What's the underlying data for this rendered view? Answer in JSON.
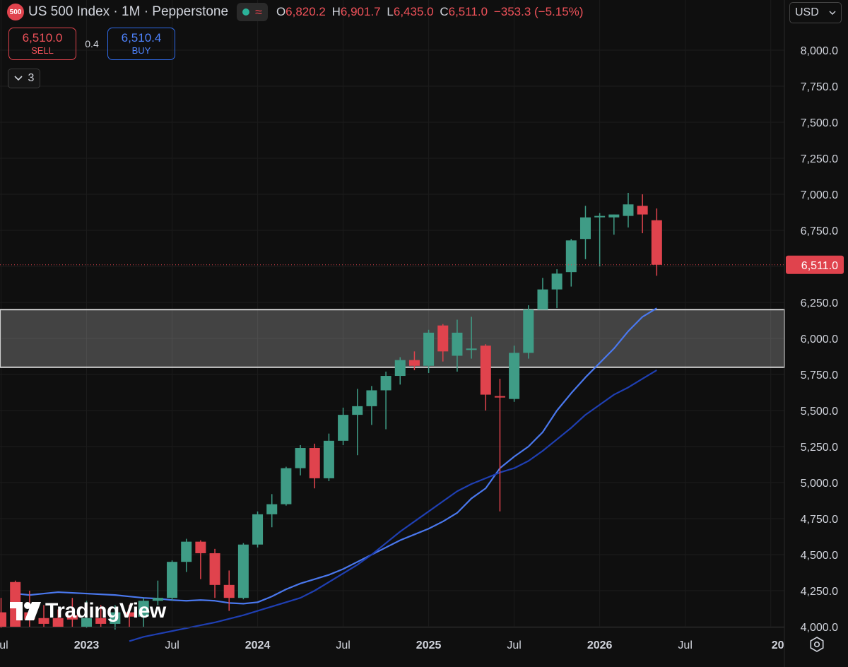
{
  "header": {
    "symbol_badge": "500",
    "title": "US 500 Index · 1M · Pepperstone",
    "ohlc": {
      "o_label": "O",
      "o": "6,820.2",
      "h_label": "H",
      "h": "6,901.7",
      "l_label": "L",
      "l": "6,435.0",
      "c_label": "C",
      "c": "6,511.0",
      "change": "−353.3 (−5.15%)"
    }
  },
  "trade": {
    "sell_price": "6,510.0",
    "sell_label": "SELL",
    "spread": "0.4",
    "buy_price": "6,510.4",
    "buy_label": "BUY"
  },
  "indicators": {
    "count": "3"
  },
  "currency": {
    "label": "USD"
  },
  "watermark": {
    "text": "TradingView"
  },
  "colors": {
    "up": "#3f9c86",
    "down": "#e0434d",
    "ma_fast": "#4a78ee",
    "ma_slow": "#1f3fb2",
    "background": "#0f0f0f"
  },
  "chart_data": {
    "type": "candlestick",
    "title": "US 500 Index · 1M · Pepperstone",
    "ylim": [
      4000,
      8000
    ],
    "y_ticks": [
      "8,000.0",
      "7,750.0",
      "7,500.0",
      "7,250.0",
      "7,000.0",
      "6,750.0",
      "6,500.0",
      "6,250.0",
      "6,000.0",
      "5,750.0",
      "5,500.0",
      "5,250.0",
      "5,000.0",
      "4,750.0",
      "4,500.0",
      "4,250.0",
      "4,000.0"
    ],
    "y_tick_values": [
      8000,
      7750,
      7500,
      7250,
      7000,
      6750,
      6500,
      6250,
      6000,
      5750,
      5500,
      5250,
      5000,
      4750,
      4500,
      4250,
      4000
    ],
    "x_ticks": [
      {
        "label": "Jul",
        "index": 0,
        "bold": false
      },
      {
        "label": "2023",
        "index": 6,
        "bold": true
      },
      {
        "label": "Jul",
        "index": 12,
        "bold": false
      },
      {
        "label": "2024",
        "index": 18,
        "bold": true
      },
      {
        "label": "Jul",
        "index": 24,
        "bold": false
      },
      {
        "label": "2025",
        "index": 30,
        "bold": true
      },
      {
        "label": "Jul",
        "index": 36,
        "bold": false
      },
      {
        "label": "2026",
        "index": 42,
        "bold": true
      },
      {
        "label": "Jul",
        "index": 48,
        "bold": false
      },
      {
        "label": "20",
        "index": 54,
        "bold": true
      }
    ],
    "last_price": 6511,
    "last_price_label": "6,511.0",
    "zone": {
      "top": 6200,
      "bottom": 5800
    },
    "candles": [
      {
        "o": 4100,
        "h": 4200,
        "l": 3990,
        "c": 4000
      },
      {
        "o": 4310,
        "h": 4320,
        "l": 4000,
        "c": 4000
      },
      {
        "o": 4100,
        "h": 4250,
        "l": 4000,
        "c": 4050
      },
      {
        "o": 4060,
        "h": 4150,
        "l": 4000,
        "c": 4020
      },
      {
        "o": 4060,
        "h": 4120,
        "l": 4000,
        "c": 4000
      },
      {
        "o": 4080,
        "h": 4200,
        "l": 4000,
        "c": 4050
      },
      {
        "o": 4000,
        "h": 4180,
        "l": 3990,
        "c": 4060
      },
      {
        "o": 4060,
        "h": 4150,
        "l": 4000,
        "c": 4020
      },
      {
        "o": 4020,
        "h": 4150,
        "l": 3980,
        "c": 4100
      },
      {
        "o": 4100,
        "h": 4150,
        "l": 4000,
        "c": 4070
      },
      {
        "o": 4070,
        "h": 4200,
        "l": 4000,
        "c": 4180
      },
      {
        "o": 4180,
        "h": 4320,
        "l": 4150,
        "c": 4200
      },
      {
        "o": 4200,
        "h": 4460,
        "l": 4180,
        "c": 4450
      },
      {
        "o": 4450,
        "h": 4610,
        "l": 4380,
        "c": 4590
      },
      {
        "o": 4590,
        "h": 4600,
        "l": 4330,
        "c": 4510
      },
      {
        "o": 4510,
        "h": 4540,
        "l": 4200,
        "c": 4290
      },
      {
        "o": 4290,
        "h": 4390,
        "l": 4110,
        "c": 4200
      },
      {
        "o": 4200,
        "h": 4580,
        "l": 4190,
        "c": 4570
      },
      {
        "o": 4570,
        "h": 4800,
        "l": 4550,
        "c": 4780
      },
      {
        "o": 4780,
        "h": 4920,
        "l": 4690,
        "c": 4850
      },
      {
        "o": 4850,
        "h": 5110,
        "l": 4840,
        "c": 5100
      },
      {
        "o": 5100,
        "h": 5260,
        "l": 5050,
        "c": 5240
      },
      {
        "o": 5240,
        "h": 5270,
        "l": 4960,
        "c": 5030
      },
      {
        "o": 5030,
        "h": 5340,
        "l": 5010,
        "c": 5290
      },
      {
        "o": 5290,
        "h": 5520,
        "l": 5260,
        "c": 5470
      },
      {
        "o": 5470,
        "h": 5650,
        "l": 5190,
        "c": 5530
      },
      {
        "o": 5530,
        "h": 5670,
        "l": 5400,
        "c": 5640
      },
      {
        "o": 5640,
        "h": 5770,
        "l": 5370,
        "c": 5740
      },
      {
        "o": 5740,
        "h": 5870,
        "l": 5680,
        "c": 5850
      },
      {
        "o": 5850,
        "h": 5910,
        "l": 5780,
        "c": 5810
      },
      {
        "o": 5810,
        "h": 6060,
        "l": 5760,
        "c": 6040
      },
      {
        "o": 6090,
        "h": 6100,
        "l": 5840,
        "c": 5910
      },
      {
        "o": 5880,
        "h": 6130,
        "l": 5770,
        "c": 6040
      },
      {
        "o": 5920,
        "h": 6150,
        "l": 5860,
        "c": 5930
      },
      {
        "o": 5950,
        "h": 5960,
        "l": 5500,
        "c": 5610
      },
      {
        "o": 5600,
        "h": 5720,
        "l": 4800,
        "c": 5590
      },
      {
        "o": 5580,
        "h": 5950,
        "l": 5560,
        "c": 5900
      },
      {
        "o": 5900,
        "h": 6230,
        "l": 5860,
        "c": 6200
      },
      {
        "o": 6200,
        "h": 6420,
        "l": 6210,
        "c": 6340
      },
      {
        "o": 6340,
        "h": 6480,
        "l": 6210,
        "c": 6450
      },
      {
        "o": 6460,
        "h": 6690,
        "l": 6360,
        "c": 6680
      },
      {
        "o": 6690,
        "h": 6920,
        "l": 6550,
        "c": 6840
      },
      {
        "o": 6850,
        "h": 6870,
        "l": 6500,
        "c": 6850
      },
      {
        "o": 6840,
        "h": 6860,
        "l": 6720,
        "c": 6860
      },
      {
        "o": 6850,
        "h": 7010,
        "l": 6770,
        "c": 6930
      },
      {
        "o": 6920,
        "h": 7000,
        "l": 6730,
        "c": 6860
      },
      {
        "o": 6820.2,
        "h": 6901.7,
        "l": 6435.0,
        "c": 6511.0
      }
    ],
    "series": [
      {
        "values": [
          4230,
          4220,
          4230,
          4240,
          4235,
          4230,
          4225,
          4220,
          4210,
          4200,
          4195,
          4185,
          4180,
          4185,
          4180,
          4165,
          4160,
          4170,
          4210,
          4260,
          4300,
          4330,
          4360,
          4400,
          4450,
          4500,
          4550,
          4600,
          4640,
          4680,
          4730,
          4790,
          4890,
          4960,
          5100,
          5180,
          5250,
          5350,
          5500,
          5620,
          5730,
          5830,
          5930,
          6050,
          6150,
          6210
        ]
      },
      {
        "values": [
          3900,
          3930,
          3950,
          3970,
          3990,
          4010,
          4030,
          4055,
          4080,
          4110,
          4140,
          4170,
          4200,
          4250,
          4310,
          4370,
          4430,
          4500,
          4580,
          4660,
          4730,
          4800,
          4870,
          4940,
          4990,
          5030,
          5070,
          5100,
          5150,
          5220,
          5300,
          5380,
          5470,
          5540,
          5610,
          5660,
          5720,
          5780
        ]
      }
    ]
  }
}
